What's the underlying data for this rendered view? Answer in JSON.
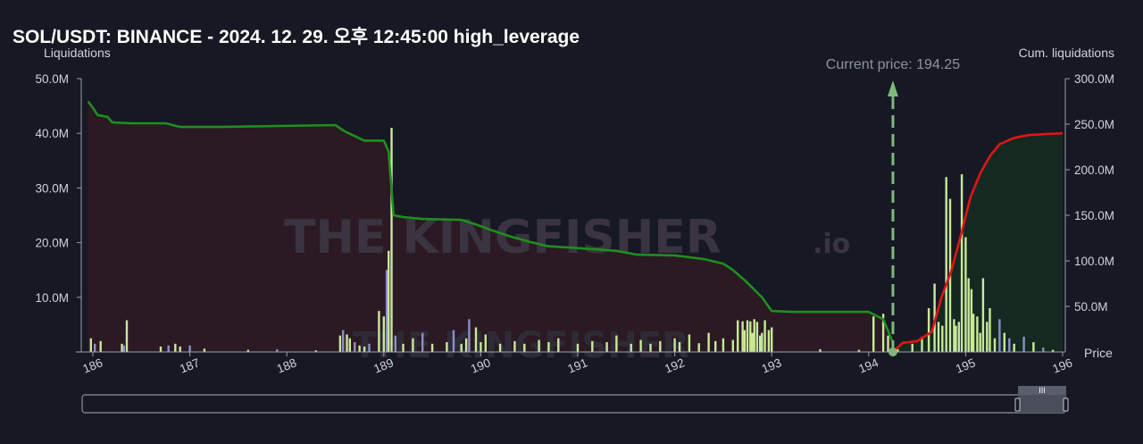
{
  "title": "SOL/USDT: BINANCE - 2024. 12. 29. 오후 12:45:00 high_leverage",
  "watermark": "THE KINGFISHER",
  "watermark_suffix": ".io",
  "colors": {
    "background": "#161823",
    "short_cum_line": "#1f8f1f",
    "long_cum_line": "#e01515",
    "short_fill": "#2c1a24",
    "long_fill": "#152a22",
    "bar_primary": "#c9e89a",
    "bar_secondary": "#8c8fc8",
    "current_price_line": "#7fb77e"
  },
  "chart_data": {
    "type": "bar",
    "title": "SOL/USDT: BINANCE - 2024. 12. 29. 오후 12:45:00 high_leverage",
    "xlabel": "Price",
    "ylabel_left": "Liquidations",
    "ylabel_right": "Cum. liquidations",
    "xlim": [
      185.95,
      196
    ],
    "ylim_left": [
      0,
      50000000
    ],
    "ylim_right": [
      0,
      300000000
    ],
    "x_ticks": [
      "186",
      "187",
      "188",
      "189",
      "190",
      "191",
      "192",
      "193",
      "194",
      "195",
      "196"
    ],
    "y_left_ticks": [
      "10.0M",
      "20.0M",
      "30.0M",
      "40.0M",
      "50.0M"
    ],
    "y_left_tick_values": [
      10000000,
      20000000,
      30000000,
      40000000,
      50000000
    ],
    "y_right_ticks": [
      "50.0M",
      "100.0M",
      "150.0M",
      "200.0M",
      "250.0M",
      "300.0M"
    ],
    "y_right_tick_values": [
      50000000,
      100000000,
      150000000,
      200000000,
      250000000,
      300000000
    ],
    "current_price": 194.25,
    "current_price_label": "Current price: 194.25",
    "series": [
      {
        "kind": "cumulative_short",
        "x": [
          185.95,
          186.0,
          186.05,
          186.15,
          186.2,
          186.4,
          186.75,
          186.9,
          187.3,
          188.5,
          188.6,
          188.8,
          189.0,
          189.05,
          189.1,
          189.2,
          189.4,
          189.8,
          189.95,
          190.1,
          190.3,
          190.5,
          190.7,
          191.0,
          191.4,
          191.6,
          192.0,
          192.3,
          192.5,
          192.6,
          192.75,
          192.9,
          193.0,
          193.2,
          194.0,
          194.15,
          194.25
        ],
        "values": [
          275000000,
          268000000,
          260000000,
          258000000,
          252000000,
          251000000,
          251000000,
          247000000,
          247000000,
          249000000,
          242000000,
          232000000,
          232000000,
          220000000,
          150000000,
          148000000,
          146000000,
          145000000,
          140000000,
          134000000,
          127000000,
          121000000,
          116000000,
          114000000,
          111000000,
          107000000,
          106000000,
          102000000,
          97000000,
          90000000,
          76000000,
          60000000,
          45000000,
          44000000,
          44000000,
          36000000,
          10000000
        ]
      },
      {
        "kind": "cumulative_long",
        "x": [
          194.25,
          194.35,
          194.5,
          194.65,
          194.75,
          194.85,
          194.95,
          195.05,
          195.15,
          195.25,
          195.35,
          195.5,
          195.65,
          195.8,
          196.0
        ],
        "values": [
          0,
          10000000,
          12000000,
          22000000,
          60000000,
          88000000,
          128000000,
          170000000,
          196000000,
          215000000,
          228000000,
          235000000,
          238000000,
          239000000,
          240000000
        ]
      },
      {
        "kind": "liquidation_bars",
        "x": [
          185.98,
          186.02,
          186.08,
          186.3,
          186.32,
          186.35,
          186.7,
          186.78,
          186.85,
          186.9,
          187.0,
          187.15,
          187.6,
          187.9,
          188.3,
          188.55,
          188.58,
          188.62,
          188.65,
          188.7,
          188.75,
          188.8,
          188.85,
          188.95,
          189.0,
          189.03,
          189.05,
          189.08,
          189.12,
          189.2,
          189.3,
          189.4,
          189.5,
          189.65,
          189.72,
          189.8,
          189.85,
          189.88,
          189.95,
          190.0,
          190.05,
          190.2,
          190.35,
          190.45,
          190.6,
          190.7,
          190.8,
          191.0,
          191.15,
          191.3,
          191.4,
          191.55,
          191.65,
          191.75,
          191.85,
          192.0,
          192.05,
          192.15,
          192.25,
          192.35,
          192.42,
          192.5,
          192.6,
          192.65,
          192.7,
          192.72,
          192.75,
          192.78,
          192.8,
          192.82,
          192.85,
          192.88,
          192.9,
          192.93,
          192.97,
          193.0,
          193.5,
          193.9,
          194.05,
          194.15,
          194.2,
          194.3,
          194.45,
          194.55,
          194.62,
          194.68,
          194.72,
          194.76,
          194.8,
          194.84,
          194.88,
          194.9,
          194.93,
          194.96,
          195.0,
          195.03,
          195.06,
          195.08,
          195.12,
          195.15,
          195.18,
          195.22,
          195.25,
          195.3,
          195.35,
          195.4,
          195.45,
          195.5,
          195.6,
          195.7,
          195.8,
          195.9
        ],
        "values": [
          2500000,
          1500000,
          2000000,
          1500000,
          1200000,
          5800000,
          1000000,
          1200000,
          1500000,
          1000000,
          1200000,
          600000,
          400000,
          500000,
          300000,
          3000000,
          4000000,
          3200000,
          2500000,
          1800000,
          1200000,
          1000000,
          1500000,
          7500000,
          6500000,
          15000000,
          18500000,
          41000000,
          3000000,
          1500000,
          2500000,
          3500000,
          1500000,
          1800000,
          4000000,
          1500000,
          2500000,
          6000000,
          4500000,
          1800000,
          3200000,
          1500000,
          2000000,
          1500000,
          2200000,
          1800000,
          2500000,
          1500000,
          2000000,
          1800000,
          3000000,
          1500000,
          2200000,
          1500000,
          2000000,
          2500000,
          1800000,
          3200000,
          1600000,
          3500000,
          2000000,
          2500000,
          2200000,
          5800000,
          5600000,
          4000000,
          5800000,
          5600000,
          3500000,
          6000000,
          5500000,
          3000000,
          3500000,
          5800000,
          4000000,
          4500000,
          500000,
          400000,
          6500000,
          7000000,
          3000000,
          500000,
          1500000,
          2800000,
          8000000,
          12500000,
          5500000,
          4800000,
          32000000,
          28000000,
          6000000,
          4800000,
          5500000,
          32500000,
          21000000,
          13500000,
          11500000,
          7000000,
          6500000,
          3500000,
          13500000,
          5500000,
          8000000,
          2500000,
          6000000,
          3500000,
          2500000,
          1500000,
          2800000,
          1800000,
          800000,
          400000
        ]
      }
    ]
  }
}
